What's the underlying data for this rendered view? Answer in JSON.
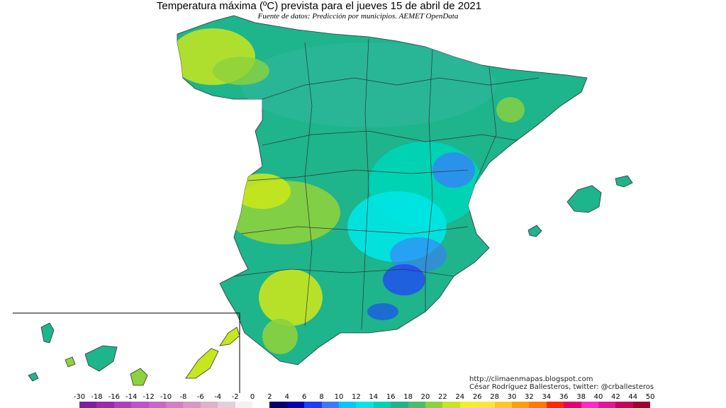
{
  "title": "Temperatura máxima (ºC) prevista para el jueves 15 de abril de 2021",
  "subtitle": "Fuente de datos: Predicción por municipios. AEMET OpenData",
  "credits": {
    "url": "http://climaenmapas.blogspot.com",
    "author": "César Rodríguez Ballesteros, twitter: @crballesteros"
  },
  "legend": {
    "labels": [
      "-30",
      "-18",
      "-16",
      "-14",
      "-12",
      "-10",
      "-8",
      "-6",
      "-4",
      "-2",
      "0",
      "2",
      "4",
      "6",
      "8",
      "10",
      "12",
      "14",
      "16",
      "18",
      "20",
      "22",
      "24",
      "26",
      "28",
      "30",
      "32",
      "34",
      "36",
      "38",
      "40",
      "42",
      "44",
      "50"
    ],
    "colors": [
      "#7b1fa2",
      "#9c27b0",
      "#b23cc0",
      "#c34fcd",
      "#c966c6",
      "#d17fc9",
      "#d897c8",
      "#ddb1cf",
      "#e6cddb",
      "#f2f2f2",
      "#ffffff",
      "#00006e",
      "#0000b4",
      "#1e3cff",
      "#3c78ff",
      "#00c8ff",
      "#00e6e6",
      "#00d2b4",
      "#1eb48c",
      "#46be6e",
      "#8cd23c",
      "#c8e61e",
      "#f0f028",
      "#ffe632",
      "#ffc81e",
      "#ffa000",
      "#ff7800",
      "#ff2800",
      "#e6006e",
      "#ff28c8",
      "#e6149b",
      "#c8005a",
      "#a0002d",
      "#78001e"
    ]
  },
  "regions": {
    "main": "Península Ibérica",
    "inset": "Islas Canarias",
    "islands": "Islas Baleares"
  }
}
